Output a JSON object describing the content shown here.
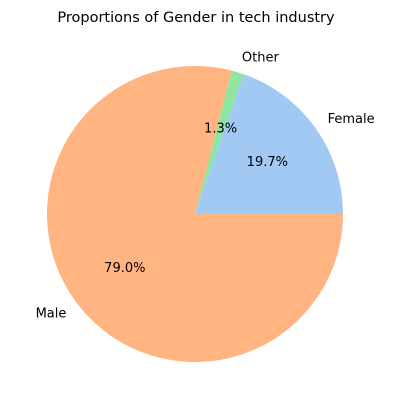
{
  "chart_data": {
    "type": "pie",
    "title": "Proportions of Gender in tech industry",
    "slices": [
      {
        "label": "Female",
        "value": 19.7,
        "pct_label": "19.7%",
        "color": "#a1c9f4"
      },
      {
        "label": "Other",
        "value": 1.3,
        "pct_label": "1.3%",
        "color": "#8de5a1"
      },
      {
        "label": "Male",
        "value": 79.0,
        "pct_label": "79.0%",
        "color": "#ffb482"
      }
    ],
    "start_angle_deg": 0,
    "direction": "counterclockwise",
    "legend": "none"
  }
}
